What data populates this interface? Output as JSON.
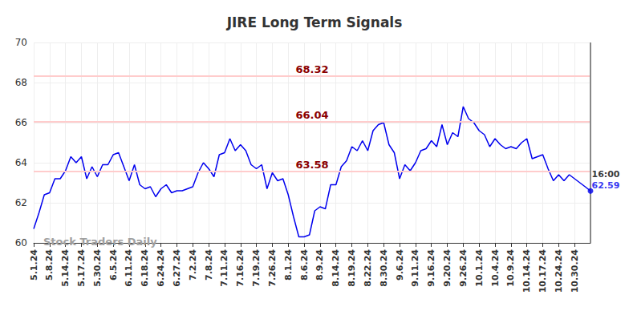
{
  "chart_data": {
    "type": "line",
    "title": "JIRE Long Term Signals",
    "watermark": "Stock Traders Daily",
    "color": "#0000ee",
    "grid": true,
    "ylim": [
      60,
      70
    ],
    "yticks": [
      60,
      62,
      64,
      66,
      68,
      70
    ],
    "signals": [
      68.32,
      66.04,
      63.58
    ],
    "end_label": {
      "time": "16:00",
      "value": 62.59
    },
    "categories": [
      "5.1.24",
      null,
      null,
      "5.8.24",
      null,
      null,
      "5.14.24",
      null,
      null,
      "5.17.24",
      null,
      null,
      "5.30.24",
      null,
      null,
      "6.5.24",
      null,
      null,
      "6.11.24",
      null,
      null,
      "6.18.24",
      null,
      null,
      "6.24.24",
      null,
      null,
      "6.27.24",
      null,
      null,
      "7.2.24",
      null,
      null,
      "7.8.24",
      null,
      null,
      "7.11.24",
      null,
      null,
      "7.16.24",
      null,
      null,
      "7.19.24",
      null,
      null,
      "7.26.24",
      null,
      null,
      "8.1.24",
      null,
      null,
      "8.6.24",
      null,
      null,
      "8.9.24",
      null,
      null,
      "8.14.24",
      null,
      null,
      "8.19.24",
      null,
      null,
      "8.22.24",
      null,
      null,
      "8.30.24",
      null,
      null,
      "9.6.24",
      null,
      null,
      "9.11.24",
      null,
      null,
      "9.16.24",
      null,
      null,
      "9.20.24",
      null,
      null,
      "9.26.24",
      null,
      null,
      "10.1.24",
      null,
      null,
      "10.4.24",
      null,
      null,
      "10.9.24",
      null,
      null,
      "10.14.24",
      null,
      null,
      "10.17.24",
      null,
      null,
      "10.24.24",
      null,
      null,
      "10.30.24",
      null,
      null,
      null
    ],
    "values": [
      60.7,
      61.5,
      62.4,
      62.5,
      63.2,
      63.2,
      63.6,
      64.3,
      64.0,
      64.3,
      63.2,
      63.8,
      63.3,
      63.9,
      63.9,
      64.4,
      64.5,
      63.8,
      63.1,
      63.9,
      62.9,
      62.7,
      62.8,
      62.3,
      62.7,
      62.9,
      62.5,
      62.6,
      62.6,
      62.7,
      62.8,
      63.5,
      64.0,
      63.7,
      63.3,
      64.4,
      64.5,
      65.2,
      64.6,
      64.9,
      64.6,
      63.9,
      63.7,
      63.9,
      62.7,
      63.5,
      63.1,
      63.2,
      62.4,
      61.3,
      60.3,
      60.3,
      60.4,
      61.6,
      61.8,
      61.7,
      62.9,
      62.9,
      63.8,
      64.1,
      64.8,
      64.6,
      65.1,
      64.6,
      65.6,
      65.9,
      66.0,
      64.9,
      64.5,
      63.2,
      63.9,
      63.6,
      64.0,
      64.6,
      64.7,
      65.1,
      64.8,
      65.9,
      64.9,
      65.5,
      65.3,
      66.8,
      66.2,
      66.0,
      65.6,
      65.4,
      64.8,
      65.2,
      64.9,
      64.7,
      64.8,
      64.7,
      65.0,
      65.2,
      64.2,
      64.3,
      64.4,
      63.7,
      63.1,
      63.4,
      63.1,
      63.4,
      63.2,
      63.0,
      62.8,
      62.59
    ]
  }
}
